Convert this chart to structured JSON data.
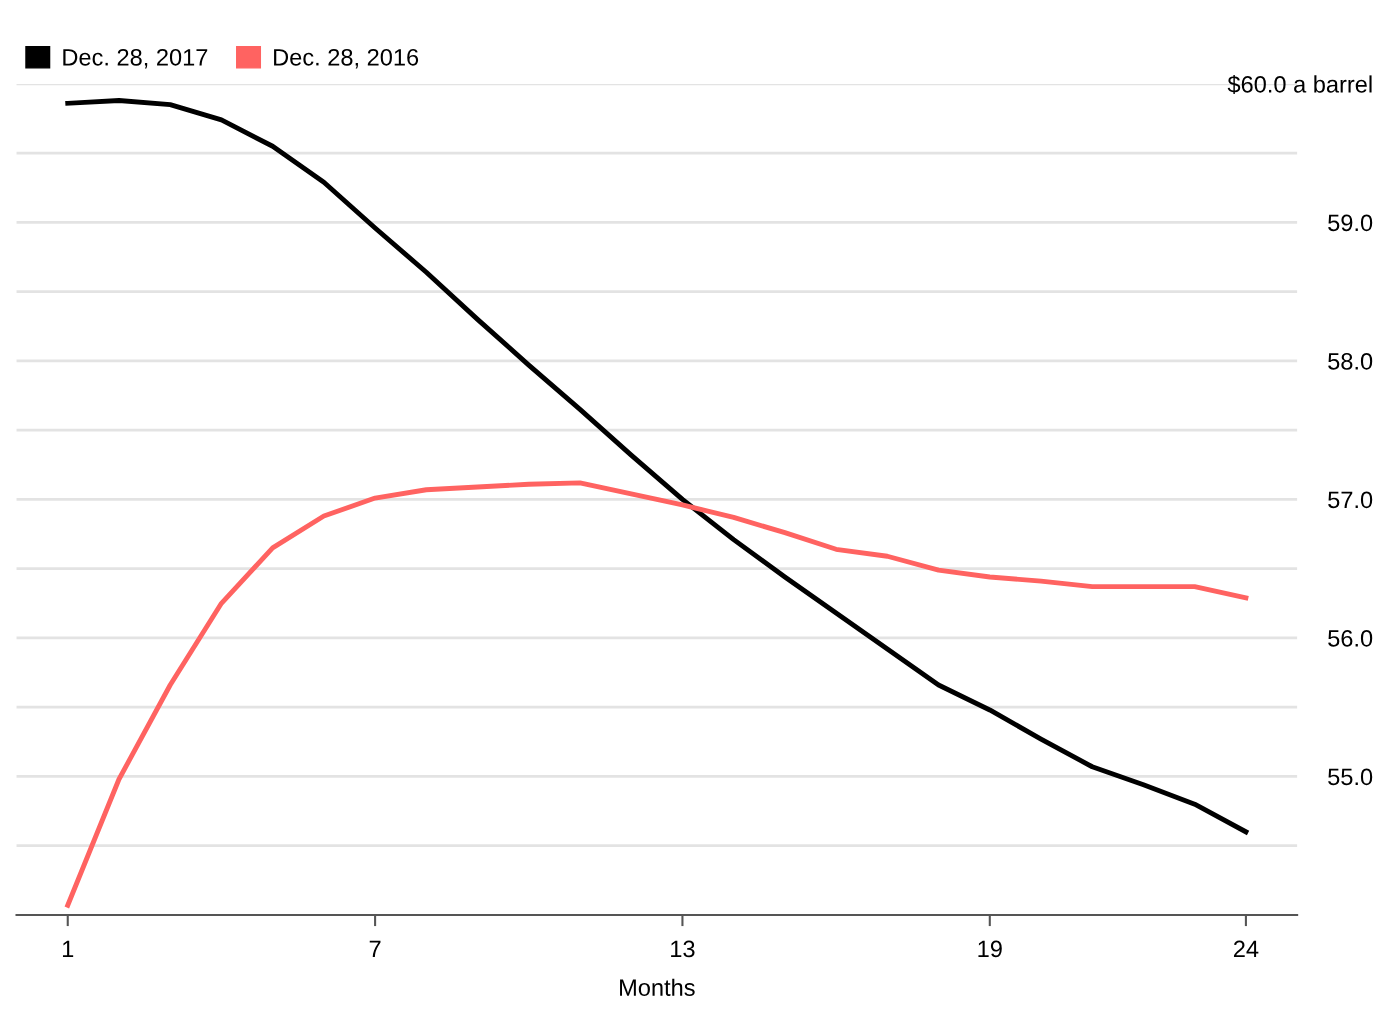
{
  "chart_data": {
    "type": "line",
    "xlabel": "Months",
    "x": [
      1,
      2,
      3,
      4,
      5,
      6,
      7,
      8,
      9,
      10,
      11,
      12,
      13,
      14,
      15,
      16,
      17,
      18,
      19,
      20,
      21,
      22,
      23,
      24
    ],
    "series": [
      {
        "name": "Dec. 28, 2017",
        "color": "#000000",
        "values": [
          59.86,
          59.88,
          59.85,
          59.74,
          59.55,
          59.29,
          58.96,
          58.64,
          58.3,
          57.97,
          57.65,
          57.32,
          57.0,
          56.71,
          56.44,
          56.18,
          55.92,
          55.66,
          55.48,
          55.27,
          55.07,
          54.94,
          54.8,
          54.6
        ]
      },
      {
        "name": "Dec. 28, 2016",
        "color": "#ff6361",
        "values": [
          54.07,
          54.98,
          55.66,
          56.25,
          56.65,
          56.88,
          57.01,
          57.07,
          57.09,
          57.11,
          57.12,
          57.04,
          56.96,
          56.87,
          56.76,
          56.64,
          56.59,
          56.49,
          56.44,
          56.41,
          56.37,
          56.37,
          56.37,
          56.29
        ]
      }
    ],
    "xlim": [
      0,
      25
    ],
    "xticks": [
      1,
      7,
      13,
      19,
      24
    ],
    "ylim": [
      54,
      60
    ],
    "yticks": [
      {
        "value": 54.5,
        "label": null
      },
      {
        "value": 55,
        "label": "55.0"
      },
      {
        "value": 55.5,
        "label": null
      },
      {
        "value": 56,
        "label": "56.0"
      },
      {
        "value": 56.5,
        "label": null
      },
      {
        "value": 57,
        "label": "57.0"
      },
      {
        "value": 57.5,
        "label": null
      },
      {
        "value": 58,
        "label": "58.0"
      },
      {
        "value": 58.5,
        "label": null
      },
      {
        "value": 59,
        "label": "59.0"
      },
      {
        "value": 59.5,
        "label": null
      },
      {
        "value": 60,
        "label": "$60.0 a barrel"
      }
    ],
    "grid": "y",
    "legend": "top left",
    "line_style": "solid",
    "marker": "none"
  }
}
